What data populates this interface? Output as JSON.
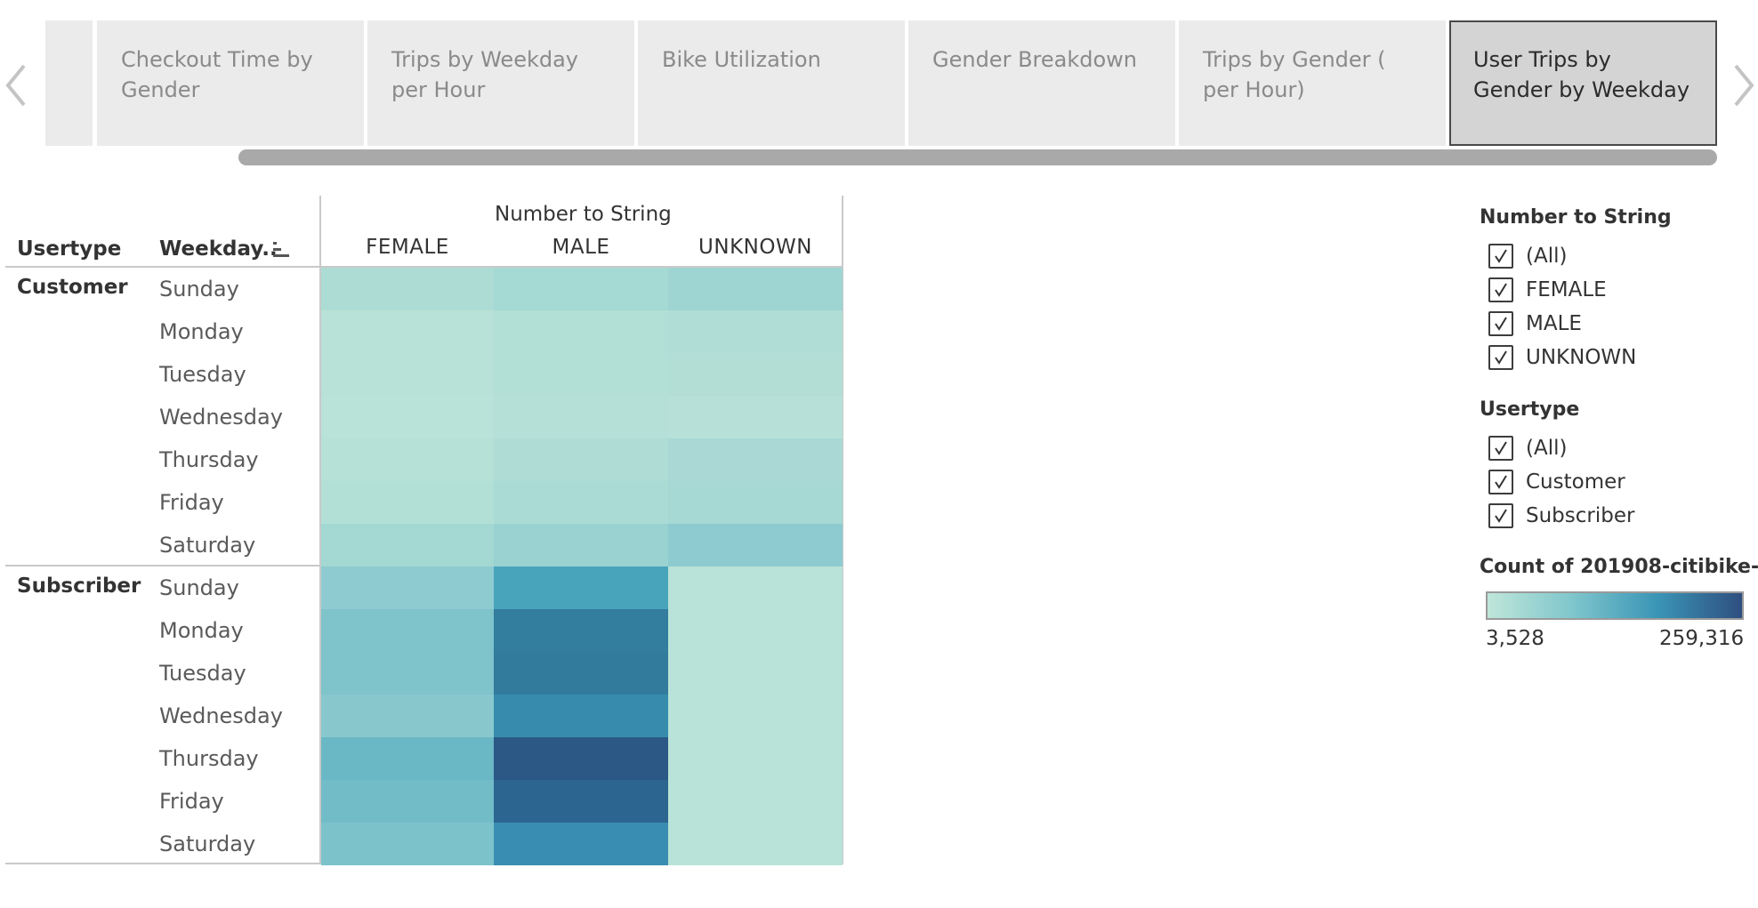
{
  "tabs": [
    {
      "label": "Checkout Time by Gender",
      "active": false
    },
    {
      "label": "Trips by Weekday per Hour",
      "active": false
    },
    {
      "label": "Bike Utilization",
      "active": false
    },
    {
      "label": "Gender Breakdown",
      "active": false
    },
    {
      "label": "Trips by Gender ( per Hour)",
      "active": false
    },
    {
      "label": "User Trips by Gender by Weekday",
      "active": true
    }
  ],
  "nav": {
    "prev_icon": "chevron-left-icon",
    "next_icon": "chevron-right-icon"
  },
  "crosstab": {
    "column_group_title": "Number to String",
    "row_header_usertype": "Usertype",
    "row_header_weekday": "Weekday..",
    "columns": [
      "FEMALE",
      "MALE",
      "UNKNOWN"
    ],
    "groups": [
      {
        "name": "Customer",
        "days": [
          "Sunday",
          "Monday",
          "Tuesday",
          "Wednesday",
          "Thursday",
          "Friday",
          "Saturday"
        ],
        "colors": [
          [
            "#acdcd4",
            "#a5d9d3",
            "#9ed5d2"
          ],
          [
            "#b8e2d7",
            "#b2dfd6",
            "#b0ddd6"
          ],
          [
            "#b8e2d7",
            "#b2dfd6",
            "#b2ded6"
          ],
          [
            "#b9e3d8",
            "#b5e0d7",
            "#b7e1d8"
          ],
          [
            "#b6e1d7",
            "#afddd6",
            "#aad9d5"
          ],
          [
            "#b3e0d6",
            "#aadbd5",
            "#a6d9d4"
          ],
          [
            "#a3d8d3",
            "#9ad2d2",
            "#8ecbd0"
          ]
        ]
      },
      {
        "name": "Subscriber",
        "days": [
          "Sunday",
          "Monday",
          "Tuesday",
          "Wednesday",
          "Thursday",
          "Friday",
          "Saturday"
        ],
        "colors": [
          [
            "#8ecbd0",
            "#48a4bb",
            "#b9e3d8"
          ],
          [
            "#7fc3cb",
            "#337d9e",
            "#b9e3d8"
          ],
          [
            "#7fc3cb",
            "#327b9d",
            "#b9e3d8"
          ],
          [
            "#88c8cd",
            "#378cae",
            "#b9e3d8"
          ],
          [
            "#6ab7c5",
            "#2b5885",
            "#b9e3d8"
          ],
          [
            "#72bcc8",
            "#2c6690",
            "#b9e3d8"
          ],
          [
            "#7cc2ca",
            "#3a8db2",
            "#b9e3d8"
          ]
        ]
      }
    ]
  },
  "filters": [
    {
      "title": "Number to String",
      "items": [
        "(All)",
        "FEMALE",
        "MALE",
        "UNKNOWN"
      ]
    },
    {
      "title": "Usertype",
      "items": [
        "(All)",
        "Customer",
        "Subscriber"
      ]
    }
  ],
  "legend": {
    "title": "Count of 201908-citibike-..",
    "min_label": "3,528",
    "max_label": "259,316",
    "gradient": [
      "#bfe6d9",
      "#7fc6cc",
      "#3a95b6",
      "#2f4f80"
    ]
  },
  "colors": {
    "tab_bg": "#ebebeb",
    "tab_active_bg": "#d4d4d4",
    "scrollbar": "#a9a9a9"
  }
}
